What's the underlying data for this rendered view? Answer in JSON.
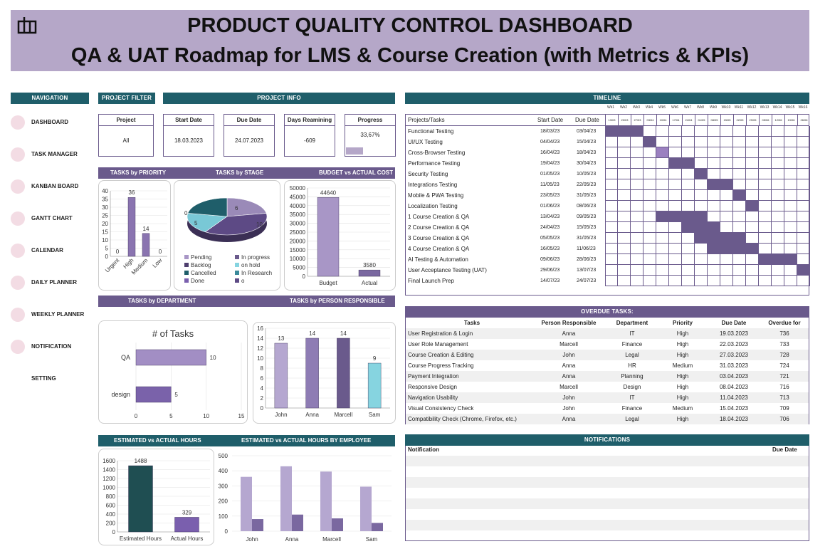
{
  "header": {
    "title": "PRODUCT QUALITY CONTROL DASHBOARD",
    "subtitle": "QA & UAT Roadmap for LMS & Course Creation (with Metrics & KPIs)",
    "logo": "dashboard-logo-icon"
  },
  "nav": {
    "title": "NAVIGATION",
    "items": [
      {
        "label": "DASHBOARD",
        "icon": "dashboard-icon"
      },
      {
        "label": "TASK MANAGER",
        "icon": "task-icon"
      },
      {
        "label": "KANBAN BOARD",
        "icon": "kanban-icon"
      },
      {
        "label": "GANTT CHART",
        "icon": "gantt-icon"
      },
      {
        "label": "CALENDAR",
        "icon": "calendar-icon"
      },
      {
        "label": "DAILY PLANNER",
        "icon": "daily-icon"
      },
      {
        "label": "WEEKLY PLANNER",
        "icon": "weekly-icon"
      },
      {
        "label": "NOTIFICATION",
        "icon": "bell-icon"
      },
      {
        "label": "SETTING",
        "icon": "gear-icon"
      }
    ]
  },
  "filter": {
    "title": "PROJECT FILTER",
    "label": "Project",
    "value": "All"
  },
  "info": {
    "title": "PROJECT INFO",
    "start": {
      "label": "Start Date",
      "value": "18.03.2023"
    },
    "due": {
      "label": "Due Date",
      "value": "24.07.2023"
    },
    "days": {
      "label": "Days Reamining",
      "value": "-609"
    },
    "progress": {
      "label": "Progress",
      "value": "33,67%",
      "fraction": 0.3367
    }
  },
  "section_titles": {
    "priority": "TASKS by PRIORITY",
    "stage": "TASKS by STAGE",
    "budget": "BUDGET vs ACTUAL COST",
    "department": "TASKS by DEPARTMENT",
    "person": "TASKS by PERSON RESPONSIBLE",
    "hours": "ESTIMATED vs ACTUAL HOURS",
    "hours_emp": "ESTIMATED vs ACTUAL HOURS BY EMPLOYEE",
    "timeline": "TIMELINE",
    "overdue": "OVERDUE TASKS:",
    "notifications": "NOTIFICATIONS"
  },
  "chart_data": [
    {
      "type": "bar",
      "id": "priority",
      "categories": [
        "Urgent",
        "High",
        "Medium",
        "Low"
      ],
      "values": [
        0,
        36,
        14,
        0
      ],
      "ylim": [
        0,
        40
      ],
      "yticks": [
        "0",
        "5",
        "10",
        "15",
        "20",
        "25",
        "30",
        "35",
        "40"
      ]
    },
    {
      "type": "pie",
      "id": "stage",
      "slices": [
        {
          "name": "Pending",
          "value": 6
        },
        {
          "name": "In progress",
          "value": 10
        },
        {
          "name": "Backlog",
          "value": 5
        },
        {
          "name": "on hold",
          "value": 5
        },
        {
          "name": "Cancelled",
          "value": 6
        },
        {
          "name": "In Research",
          "value": 0
        },
        {
          "name": "Done",
          "value": 0
        },
        {
          "name": "o",
          "value": 0
        }
      ],
      "labels": [
        "6",
        "10",
        "5",
        "0"
      ]
    },
    {
      "type": "bar",
      "id": "budget",
      "categories": [
        "Budget",
        "Actual"
      ],
      "values": [
        44640,
        3580
      ],
      "ylim": [
        0,
        50000
      ],
      "yticks": [
        "0",
        "5000",
        "10000",
        "15000",
        "20000",
        "25000",
        "30000",
        "35000",
        "40000",
        "45000",
        "50000"
      ]
    },
    {
      "type": "bar",
      "id": "department",
      "title": "# of Tasks",
      "categories": [
        "QA",
        "design"
      ],
      "values": [
        10,
        5
      ],
      "xlim": [
        0,
        15
      ],
      "xticks": [
        "0",
        "5",
        "10",
        "15"
      ]
    },
    {
      "type": "bar",
      "id": "person",
      "categories": [
        "John",
        "Anna",
        "Marcell",
        "Sam"
      ],
      "values": [
        13,
        14,
        14,
        9
      ],
      "ylim": [
        0,
        16
      ],
      "yticks": [
        "0",
        "2",
        "4",
        "6",
        "8",
        "10",
        "12",
        "14",
        "16"
      ]
    },
    {
      "type": "bar",
      "id": "hours",
      "categories": [
        "Estimated Hours",
        "Actual Hours"
      ],
      "values": [
        1488,
        329
      ],
      "ylim": [
        0,
        1600
      ],
      "yticks": [
        "0",
        "200",
        "400",
        "600",
        "800",
        "1000",
        "1200",
        "1400",
        "1600"
      ]
    },
    {
      "type": "bar",
      "id": "hours_emp",
      "categories": [
        "John",
        "Anna",
        "Marcell",
        "Sam"
      ],
      "series": [
        {
          "values": [
            360,
            430,
            395,
            295
          ]
        },
        {
          "values": [
            80,
            110,
            85,
            55
          ]
        }
      ],
      "ylim": [
        0,
        500
      ],
      "yticks": [
        "0",
        "100",
        "200",
        "300",
        "400",
        "500"
      ]
    }
  ],
  "timeline": {
    "headers": {
      "task": "Projects/Tasks",
      "start": "Start Date",
      "due": "Due Date"
    },
    "weeks": [
      "Wk",
      "Wk",
      "Wk",
      "Wk",
      "Wk",
      "Wk",
      "Wk",
      "Wk",
      "Wk",
      "Wk",
      "Wk",
      "Wk",
      "Wk",
      "Wk",
      "Wk",
      "Wk"
    ],
    "week_nums": [
      "1",
      "2",
      "3",
      "4",
      "5",
      "6",
      "7",
      "8",
      "9",
      "10",
      "11",
      "12",
      "13",
      "14",
      "15",
      "16"
    ],
    "week_dates": [
      "13/03",
      "20/03",
      "27/03",
      "03/04",
      "10/04",
      "17/04",
      "24/04",
      "01/05",
      "08/05",
      "15/05",
      "22/05",
      "29/05",
      "05/06",
      "12/06",
      "19/06",
      "26/06"
    ],
    "rows": [
      {
        "task": "Functional Testing",
        "start": "18/03/23",
        "due": "03/04/23",
        "span": [
          1,
          3
        ],
        "shade": 1
      },
      {
        "task": "UI/UX Testing",
        "start": "04/04/23",
        "due": "15/04/23",
        "span": [
          4,
          4
        ],
        "shade": 1
      },
      {
        "task": "Cross-Browser Testing",
        "start": "16/04/23",
        "due": "18/04/23",
        "span": [
          5,
          5
        ],
        "shade": 2
      },
      {
        "task": "Performance Testing",
        "start": "19/04/23",
        "due": "30/04/23",
        "span": [
          6,
          7
        ],
        "shade": 1
      },
      {
        "task": "Security Testing",
        "start": "01/05/23",
        "due": "10/05/23",
        "span": [
          8,
          8
        ],
        "shade": 1
      },
      {
        "task": "Integrations Testing",
        "start": "11/05/23",
        "due": "22/05/23",
        "span": [
          9,
          10
        ],
        "shade": 1
      },
      {
        "task": "Mobile & PWA Testing",
        "start": "23/05/23",
        "due": "31/05/23",
        "span": [
          11,
          11
        ],
        "shade": 1
      },
      {
        "task": "Localization Testing",
        "start": "01/06/23",
        "due": "08/06/23",
        "span": [
          12,
          12
        ],
        "shade": 1
      },
      {
        "task": "1 Course Creation & QA",
        "start": "13/04/23",
        "due": "09/05/23",
        "span": [
          5,
          8
        ],
        "shade": 1
      },
      {
        "task": "2 Course Creation & QA",
        "start": "24/04/23",
        "due": "15/05/23",
        "span": [
          7,
          9
        ],
        "shade": 1
      },
      {
        "task": "3 Course Creation & QA",
        "start": "05/05/23",
        "due": "31/05/23",
        "span": [
          8,
          11
        ],
        "shade": 1
      },
      {
        "task": "4 Course Creation & QA",
        "start": "16/05/23",
        "due": "11/06/23",
        "span": [
          9,
          12
        ],
        "shade": 1
      },
      {
        "task": "AI Testing & Automation",
        "start": "09/06/23",
        "due": "28/06/23",
        "span": [
          13,
          15
        ],
        "shade": 1
      },
      {
        "task": "User Acceptance Testing (UAT)",
        "start": "29/06/23",
        "due": "13/07/23",
        "span": [
          16,
          16
        ],
        "shade": 1
      },
      {
        "task": "Final Launch Prep",
        "start": "14/07/23",
        "due": "24/07/23",
        "span": [
          0,
          0
        ],
        "shade": 0
      }
    ]
  },
  "overdue": {
    "headers": [
      "Tasks",
      "Person Responsible",
      "Department",
      "Priority",
      "Due Date",
      "Overdue for"
    ],
    "rows": [
      [
        "User Registration & Login",
        "Anna",
        "IT",
        "High",
        "19.03.2023",
        "736"
      ],
      [
        "User Role Management",
        "Marcell",
        "Finance",
        "High",
        "22.03.2023",
        "733"
      ],
      [
        "Course Creation & Editing",
        "John",
        "Legal",
        "High",
        "27.03.2023",
        "728"
      ],
      [
        "Course Progress Tracking",
        "Anna",
        "HR",
        "Medium",
        "31.03.2023",
        "724"
      ],
      [
        "Payment Integration",
        "Anna",
        "Planning",
        "High",
        "03.04.2023",
        "721"
      ],
      [
        "Responsive Design",
        "Marcell",
        "Design",
        "High",
        "08.04.2023",
        "716"
      ],
      [
        "Navigation Usability",
        "John",
        "IT",
        "High",
        "11.04.2023",
        "713"
      ],
      [
        "Visual Consistency Check",
        "John",
        "Finance",
        "Medium",
        "15.04.2023",
        "709"
      ],
      [
        "Compatibility Check (Chrome, Firefox, etc.)",
        "Anna",
        "Legal",
        "High",
        "18.04.2023",
        "706"
      ]
    ]
  },
  "notifications": {
    "headers": {
      "notification": "Notification",
      "due": "Due Date"
    },
    "rows": []
  },
  "colors": {
    "teal": "#1f5e6a",
    "purple": "#6a5a8c",
    "lilac": "#b5a7c8",
    "light": "#9b80c0"
  }
}
